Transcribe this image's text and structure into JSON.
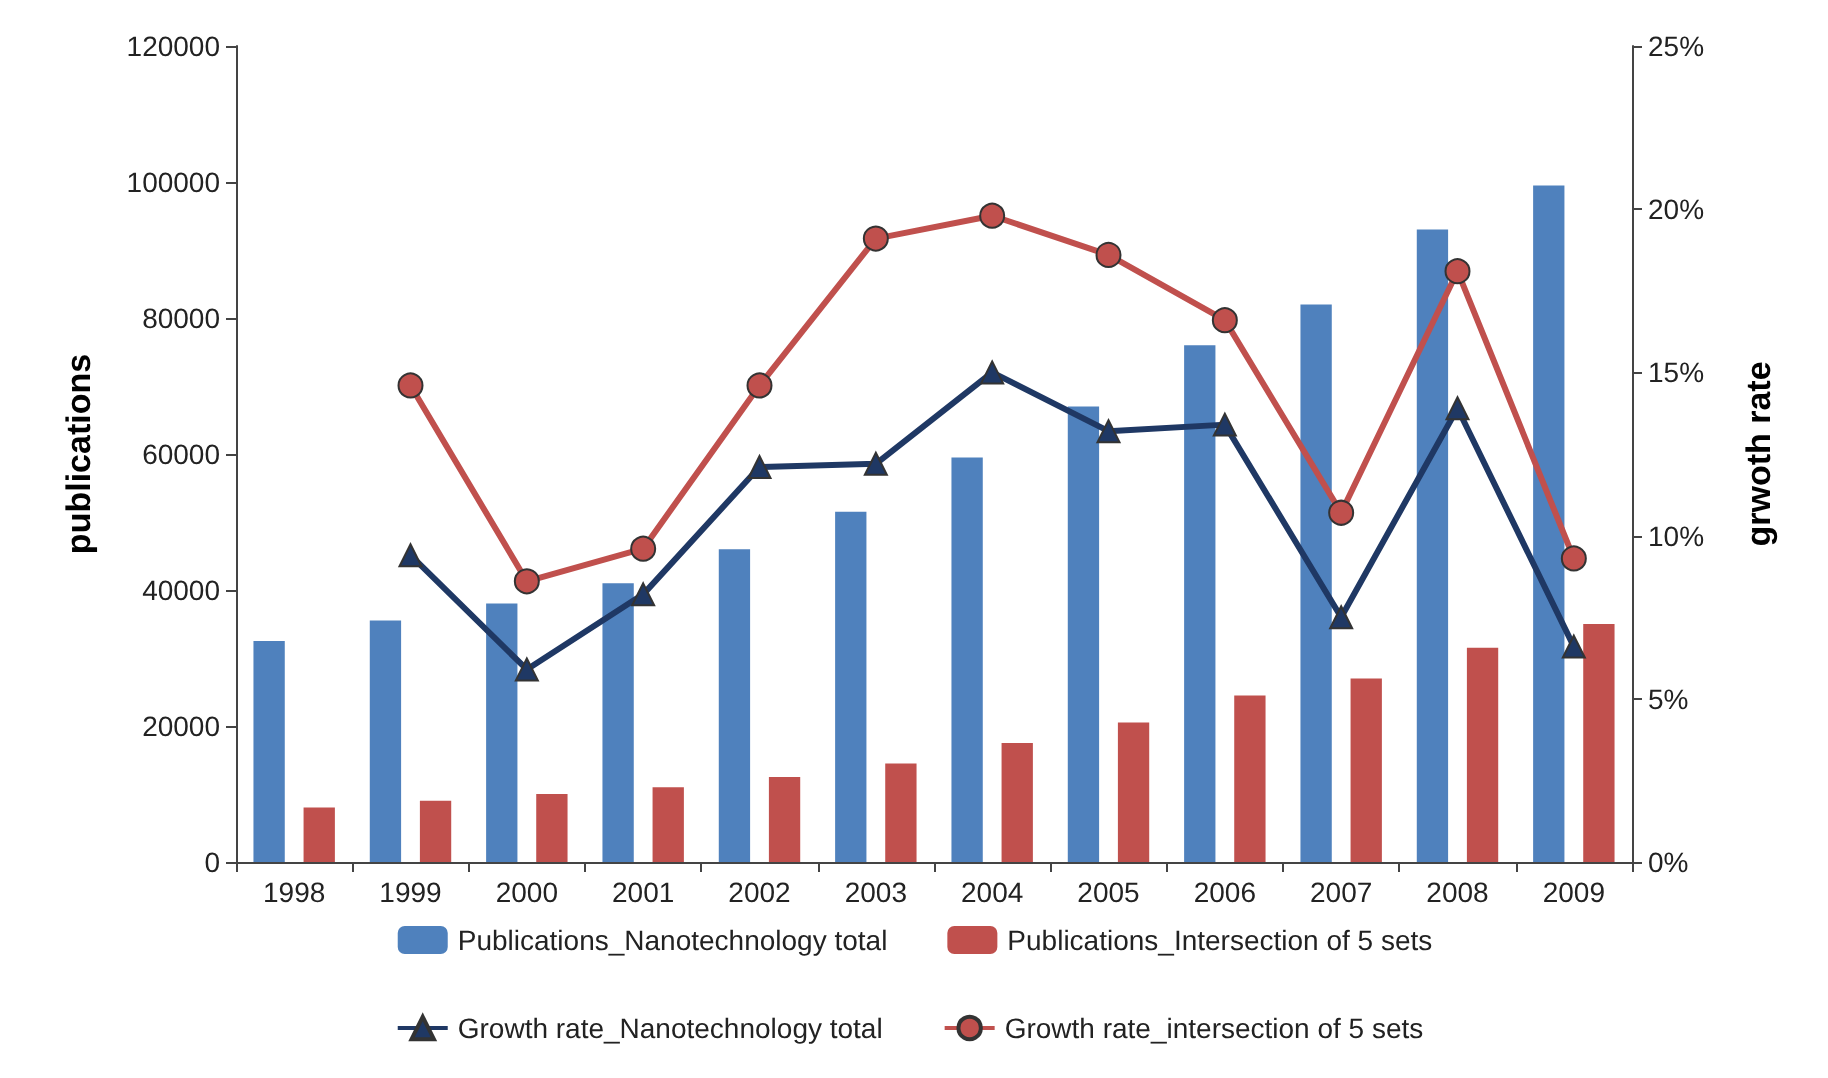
{
  "chart_data": {
    "type": "bar",
    "categories": [
      "1998",
      "1999",
      "2000",
      "2001",
      "2002",
      "2003",
      "2004",
      "2005",
      "2006",
      "2007",
      "2008",
      "2009"
    ],
    "ylabel": "publications",
    "y2label": "grwoth rate",
    "ylim": [
      0,
      120000
    ],
    "yticks": [
      0,
      20000,
      40000,
      60000,
      80000,
      100000,
      120000
    ],
    "y2lim": [
      0,
      25
    ],
    "y2ticks": [
      {
        "value": 0,
        "label": "0%"
      },
      {
        "value": 5,
        "label": "5%"
      },
      {
        "value": 10,
        "label": "10%"
      },
      {
        "value": 15,
        "label": "15%"
      },
      {
        "value": 20,
        "label": "20%"
      },
      {
        "value": 25,
        "label": "25%"
      }
    ],
    "grid": false,
    "legend": "bottom",
    "series": [
      {
        "name": "Publications_Nanotechnology total",
        "color": "#4f81bd",
        "values": [
          32500,
          35500,
          38000,
          41000,
          46000,
          51500,
          59500,
          67000,
          76000,
          82000,
          93000,
          99500
        ]
      },
      {
        "name": "Publications_Intersection of 5 sets",
        "color": "#c0504d",
        "values": [
          8000,
          9000,
          10000,
          11000,
          12500,
          14500,
          17500,
          20500,
          24500,
          27000,
          31500,
          35000
        ]
      },
      {
        "name": "Growth rate_Nanotechnology total",
        "type": "line",
        "axis": "y2",
        "marker": "triangle",
        "color": "#1f3864",
        "values": [
          null,
          9.4,
          5.9,
          8.2,
          12.1,
          12.2,
          15.0,
          13.2,
          13.4,
          7.5,
          13.9,
          6.6
        ]
      },
      {
        "name": "Growth rate_intersection of 5 sets",
        "type": "line",
        "axis": "y2",
        "marker": "circle",
        "color": "#c0504d",
        "values": [
          null,
          14.6,
          8.6,
          9.6,
          14.6,
          19.1,
          19.8,
          18.6,
          16.6,
          10.7,
          18.1,
          9.3
        ]
      }
    ]
  }
}
